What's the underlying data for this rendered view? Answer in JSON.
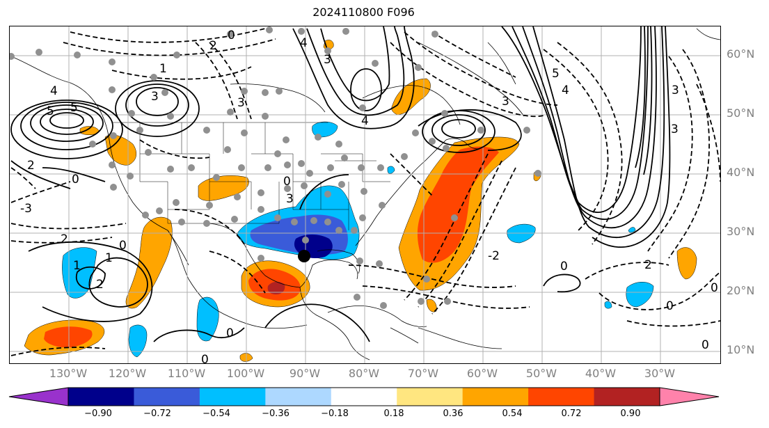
{
  "title": "2024110800 F096",
  "lon_labels": [
    "130°W",
    "120°W",
    "110°W",
    "100°W",
    "90°W",
    "80°W",
    "70°W",
    "60°W",
    "50°W",
    "40°W",
    "30°W"
  ],
  "lat_labels": [
    "60°N",
    "50°N",
    "40°N",
    "30°N",
    "20°N",
    "10°N"
  ],
  "colorbar": {
    "ticks": [
      "−0.90",
      "−0.72",
      "−0.54",
      "−0.36",
      "−0.18",
      "0.18",
      "0.36",
      "0.54",
      "0.72",
      "0.90"
    ],
    "colors": [
      "#9932cc",
      "#00008b",
      "#3a5bd9",
      "#00bfff",
      "#add8ff",
      "#ffffff",
      "#ffe680",
      "#ffa500",
      "#ff4500",
      "#b22222",
      "#ff82ab"
    ]
  },
  "colors": {
    "orange": "#ffa500",
    "red_orange": "#ff4500",
    "dark_red": "#b22222",
    "light_blue": "#00bfff",
    "mid_blue": "#3a5bd9",
    "navy": "#00008b",
    "station_gray": "#909090",
    "grid_gray": "#b0b0b0",
    "axis_label_gray": "#808080"
  },
  "contour_labels": [
    "3",
    "5",
    "4",
    "3",
    "2",
    "1",
    "0",
    "4",
    "3",
    "4",
    "5",
    "4",
    "3",
    "3",
    "2",
    "0",
    "1",
    "0",
    "2",
    "2",
    "1",
    "0",
    "0",
    "0",
    "0",
    "0",
    "0",
    "2",
    "0",
    "3",
    "5",
    "3",
    "-3",
    "-2"
  ],
  "marker": "black-dot"
}
